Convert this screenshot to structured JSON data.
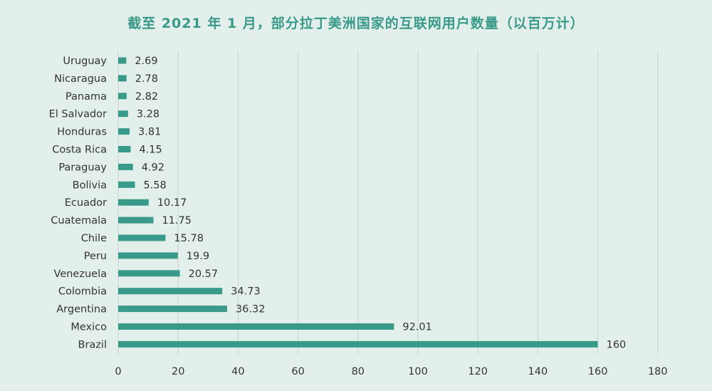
{
  "chart_data": {
    "type": "bar",
    "orientation": "horizontal",
    "title": "截至 2021 年 1 月，部分拉丁美洲国家的互联网用户数量（以百万计）",
    "categories": [
      "Uruguay",
      "Nicaragua",
      "Panama",
      "El Salvador",
      "Honduras",
      "Costa Rica",
      "Paraguay",
      "Bolivia",
      "Ecuador",
      "Cuatemala",
      "Chile",
      "Peru",
      "Venezuela",
      "Colombia",
      "Argentina",
      "Mexico",
      "Brazil"
    ],
    "values": [
      2.69,
      2.78,
      2.82,
      3.28,
      3.81,
      4.15,
      4.92,
      5.58,
      10.17,
      11.75,
      15.78,
      19.9,
      20.57,
      34.73,
      36.32,
      92.01,
      160
    ],
    "value_labels": [
      "2.69",
      "2.78",
      "2.82",
      "3.28",
      "3.81",
      "4.15",
      "4.92",
      "5.58",
      "10.17",
      "11.75",
      "15.78",
      "19.9",
      "20.57",
      "34.73",
      "36.32",
      "92.01",
      "160"
    ],
    "xlim": [
      0,
      180
    ],
    "xticks": [
      0,
      20,
      40,
      60,
      80,
      100,
      120,
      140,
      160,
      180
    ],
    "xlabel": "",
    "ylabel": "",
    "grid": "vertical",
    "legend": "none",
    "bar_color": "#3a9a8a",
    "grid_color": "#c9d3d0"
  }
}
